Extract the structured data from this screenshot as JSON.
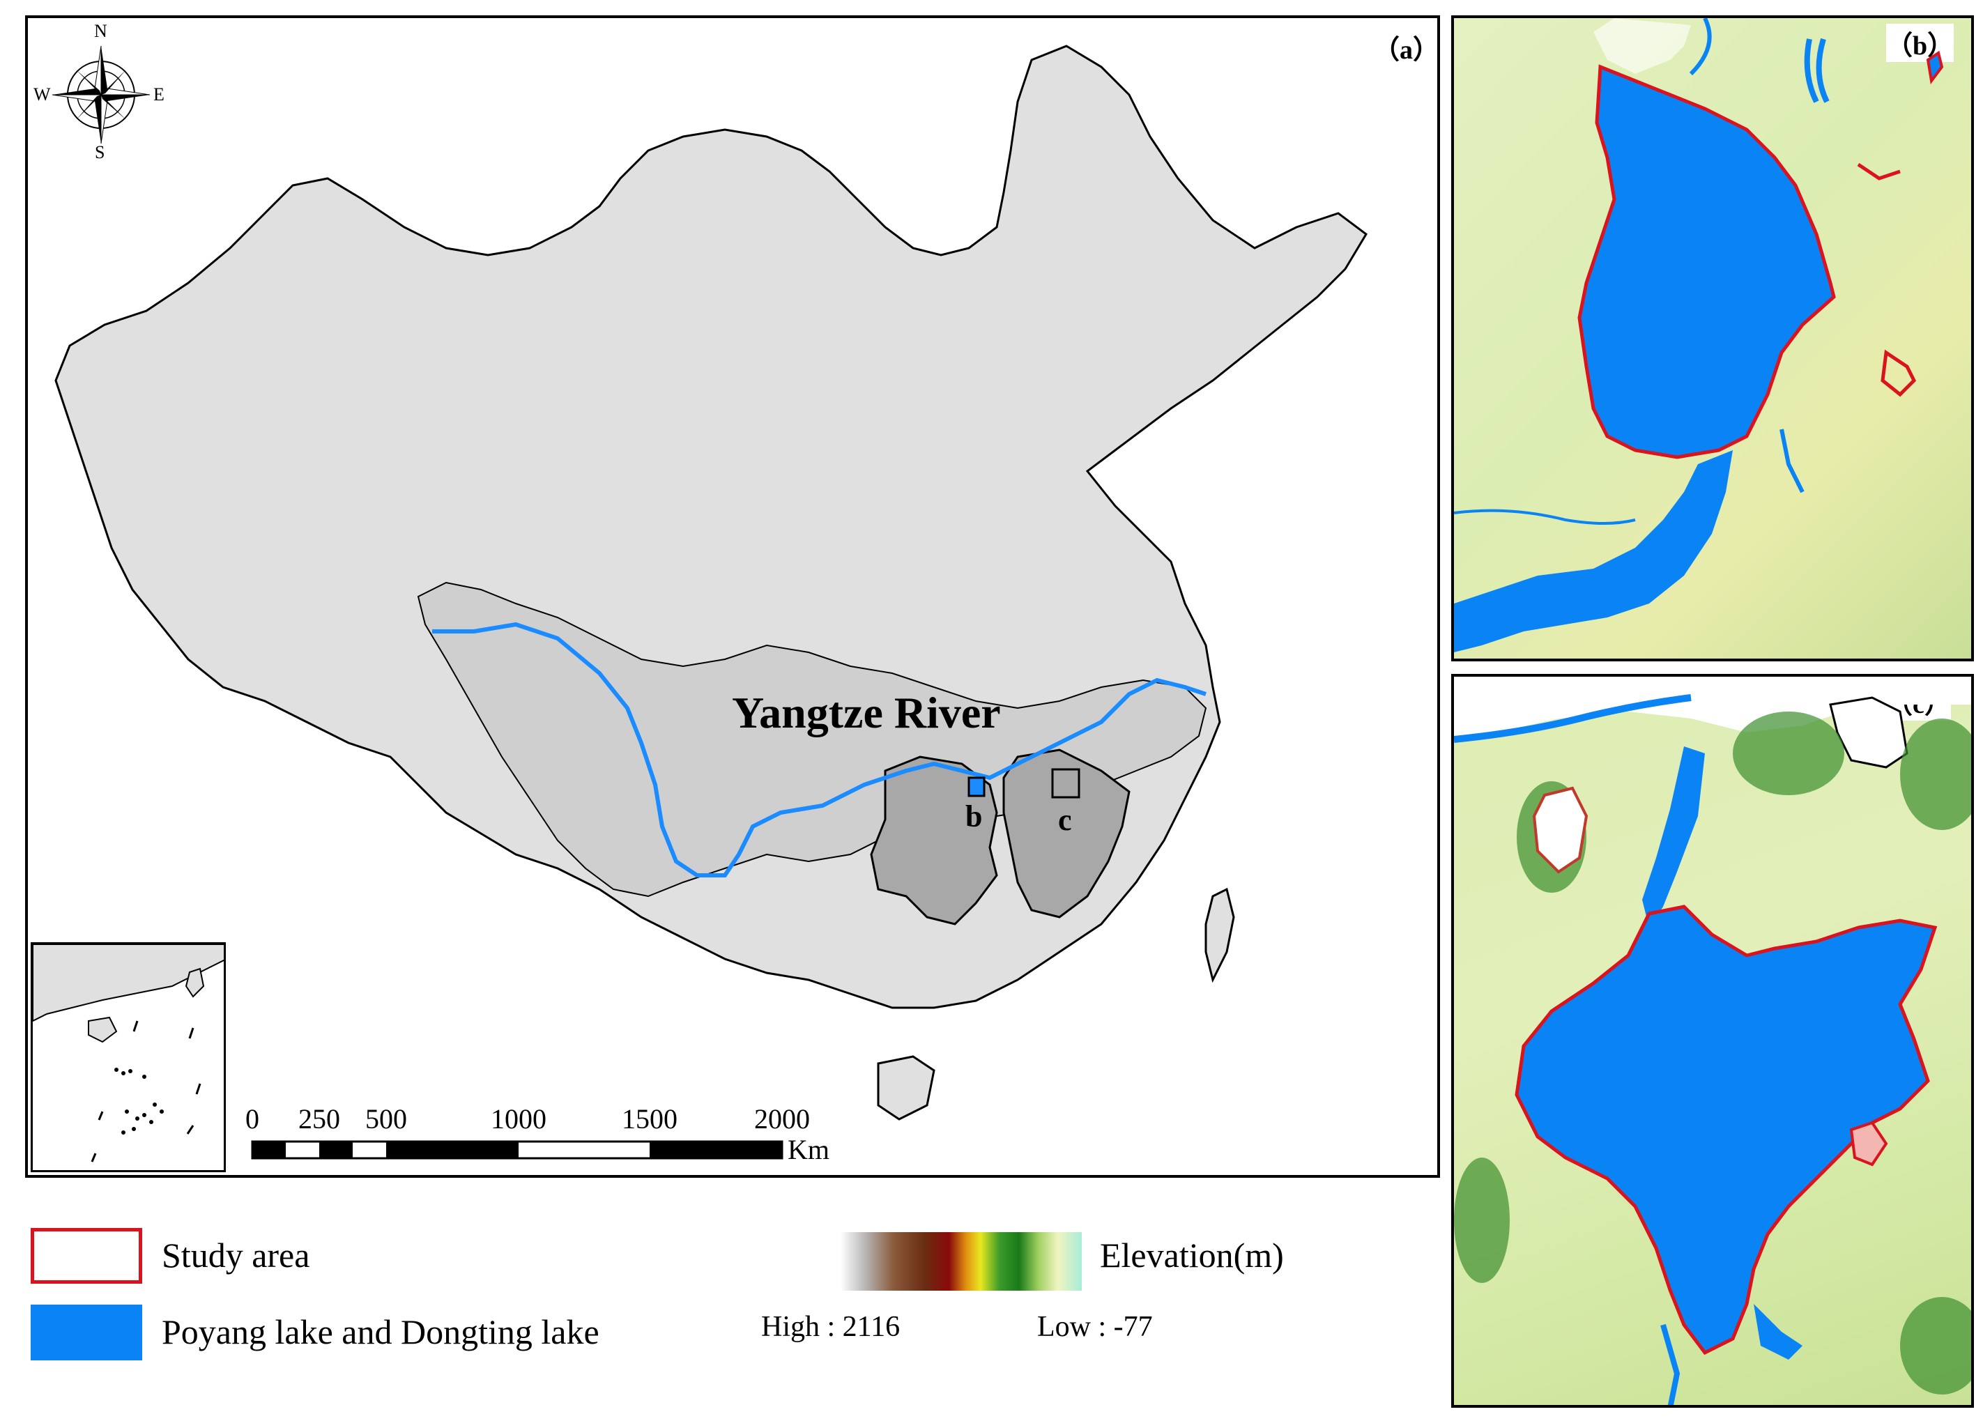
{
  "panels": {
    "a": {
      "label": "（a）"
    },
    "b": {
      "label": "（b）"
    },
    "c": {
      "label": "（c）"
    }
  },
  "compass": {
    "n": "N",
    "s": "S",
    "e": "E",
    "w": "W"
  },
  "map": {
    "river_label": "Yangtze River",
    "box_b": "b",
    "box_c": "c"
  },
  "scale_bar": {
    "ticks": [
      "0",
      "250",
      "500",
      "1000",
      "1500",
      "2000"
    ],
    "unit": "Km"
  },
  "legend": {
    "study_area": "Study area",
    "lakes": "Poyang lake and Dongting lake",
    "elevation_title": "Elevation(m)",
    "elevation_high": "High : 2116",
    "elevation_low": "Low : -77"
  },
  "colors": {
    "study_area_outline": "#d9141e",
    "lake_fill": "#0a84f5",
    "china_fill": "#e0e0e0",
    "basin_fill": "#cfcfcf",
    "province_fill": "#a8a8a8",
    "river": "#1a8cff",
    "lowland": "#dcedb3"
  }
}
